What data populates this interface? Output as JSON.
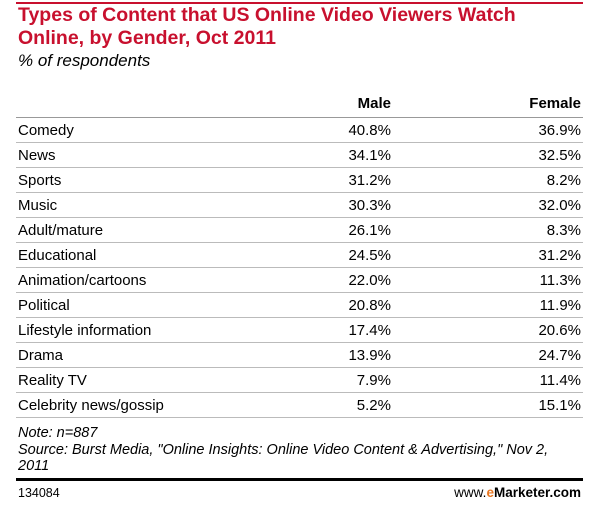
{
  "header": {
    "title": "Types of Content that US Online Video Viewers Watch Online, by Gender, Oct 2011",
    "subtitle": "% of respondents"
  },
  "table": {
    "columns": [
      "Male",
      "Female"
    ],
    "rows": [
      [
        "Comedy",
        "40.8%",
        "36.9%"
      ],
      [
        "News",
        "34.1%",
        "32.5%"
      ],
      [
        "Sports",
        "31.2%",
        "8.2%"
      ],
      [
        "Music",
        "30.3%",
        "32.0%"
      ],
      [
        "Adult/mature",
        "26.1%",
        "8.3%"
      ],
      [
        "Educational",
        "24.5%",
        "31.2%"
      ],
      [
        "Animation/cartoons",
        "22.0%",
        "11.3%"
      ],
      [
        "Political",
        "20.8%",
        "11.9%"
      ],
      [
        "Lifestyle information",
        "17.4%",
        "20.6%"
      ],
      [
        "Drama",
        "13.9%",
        "24.7%"
      ],
      [
        "Reality TV",
        "7.9%",
        "11.4%"
      ],
      [
        "Celebrity news/gossip",
        "5.2%",
        "15.1%"
      ]
    ]
  },
  "notes": [
    "Note: n=887",
    "Source: Burst Media, \"Online Insights: Online Video Content & Advertising,\" Nov 2, 2011"
  ],
  "footer": {
    "id": "134084",
    "brand_prefix": "www.",
    "brand_e": "e",
    "brand_rest": "Marketer.com"
  }
}
